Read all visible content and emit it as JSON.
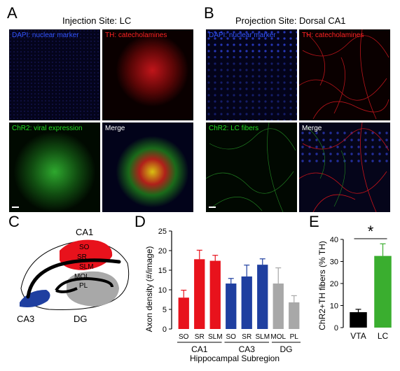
{
  "panelA": {
    "letter": "A",
    "title": "Injection Site: LC",
    "tiles": [
      {
        "caption": "DAPI: nuclear marker",
        "caption_color": "#3355ff"
      },
      {
        "caption": "TH: catecholamines",
        "caption_color": "#ff2222"
      },
      {
        "caption": "ChR2: viral expression",
        "caption_color": "#22dd22"
      },
      {
        "caption": "Merge",
        "caption_color": "#ffffff"
      }
    ]
  },
  "panelB": {
    "letter": "B",
    "title": "Projection Site: Dorsal CA1",
    "tiles": [
      {
        "caption": "DAPI: nuclear marker",
        "caption_color": "#3355ff"
      },
      {
        "caption": "TH: catecholamines",
        "caption_color": "#ff2222"
      },
      {
        "caption": "ChR2: LC fibers",
        "caption_color": "#22dd22"
      },
      {
        "caption": "Merge",
        "caption_color": "#ffffff"
      }
    ]
  },
  "panelC": {
    "letter": "C",
    "labels": {
      "ca1": "CA1",
      "so": "SO",
      "sr": "SR",
      "slm": "SLM",
      "mol": "MOL",
      "pl": "PL",
      "ca3": "CA3",
      "dg": "DG"
    },
    "colors": {
      "ca1": "#e8121c",
      "ca3": "#1f3fa0",
      "dg": "#a8a8a8"
    }
  },
  "panelD": {
    "letter": "D",
    "chart_data": {
      "type": "bar",
      "ylabel": "Axon density (#/image)",
      "xlabel": "Hippocampal Subregion",
      "ylim": [
        0,
        25
      ],
      "yticks": [
        0,
        5,
        10,
        15,
        20,
        25
      ],
      "categories": [
        "SO",
        "SR",
        "SLM",
        "SO",
        "SR",
        "SLM",
        "MOL",
        "PL"
      ],
      "groups": [
        {
          "name": "CA1",
          "start": 0,
          "end": 2
        },
        {
          "name": "CA3",
          "start": 3,
          "end": 5
        },
        {
          "name": "DG",
          "start": 6,
          "end": 7
        }
      ],
      "values": [
        8.0,
        17.8,
        17.4,
        11.6,
        13.4,
        16.4,
        11.6,
        6.8
      ],
      "errors": [
        1.9,
        2.3,
        1.4,
        1.3,
        2.9,
        1.5,
        4.0,
        1.7
      ],
      "colors": [
        "#e8121c",
        "#e8121c",
        "#e8121c",
        "#1f3fa0",
        "#1f3fa0",
        "#1f3fa0",
        "#a8a8a8",
        "#a8a8a8"
      ]
    }
  },
  "panelE": {
    "letter": "E",
    "chart_data": {
      "type": "bar",
      "ylabel": "ChR2+TH fibers (% TH)",
      "ylim": [
        0,
        40
      ],
      "yticks": [
        0,
        10,
        20,
        30,
        40
      ],
      "categories": [
        "VTA",
        "LC"
      ],
      "values": [
        7.0,
        32.5
      ],
      "errors": [
        1.3,
        5.5
      ],
      "colors": [
        "#000000",
        "#3aae2f"
      ],
      "annotation": "*"
    }
  }
}
